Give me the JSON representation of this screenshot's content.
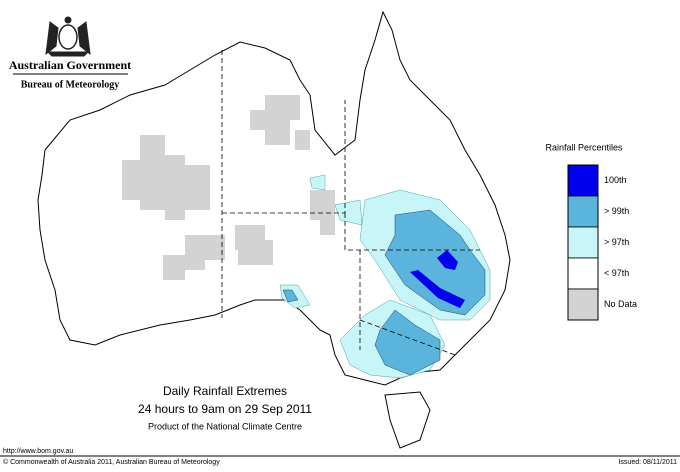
{
  "header": {
    "government": "Australian Government",
    "agency": "Bureau of Meteorology"
  },
  "legend": {
    "title": "Rainfall Percentiles",
    "items": [
      {
        "label": "100th",
        "color": "#0000ee"
      },
      {
        "label": "> 99th",
        "color": "#5ab4dc"
      },
      {
        "label": "> 97th",
        "color": "#c8f5f8"
      },
      {
        "label": "< 97th",
        "color": "#ffffff"
      },
      {
        "label": "No Data",
        "color": "#d3d3d3"
      }
    ]
  },
  "caption": {
    "title": "Daily Rainfall Extremes",
    "period": "24 hours to 9am on 29 Sep 2011",
    "product": "Product of the National Climate Centre"
  },
  "footer": {
    "url": "http://www.bom.gov.au",
    "copyright": "© Commonwealth of Australia 2011, Australian Bureau of Meteorology",
    "issued": "Issued: 08/11/2011"
  }
}
